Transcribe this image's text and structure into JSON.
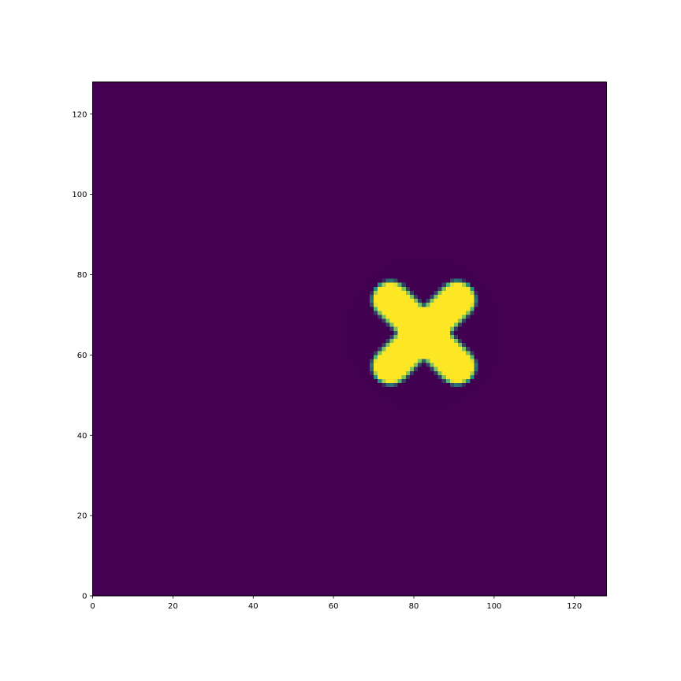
{
  "chart_data": {
    "type": "heatmap",
    "title": "",
    "xlabel": "",
    "ylabel": "",
    "xlim": [
      0,
      128
    ],
    "ylim": [
      0,
      128
    ],
    "origin": "lower",
    "grid": false,
    "legend": "none",
    "colormap": "viridis",
    "x_ticks": [
      0,
      20,
      40,
      60,
      80,
      100,
      120
    ],
    "x_tick_labels": [
      "0",
      "20",
      "40",
      "60",
      "80",
      "100",
      "120"
    ],
    "y_ticks": [
      0,
      20,
      40,
      60,
      80,
      100,
      120
    ],
    "y_tick_labels": [
      "0",
      "20",
      "40",
      "60",
      "80",
      "100",
      "120"
    ],
    "background_value": 0,
    "background_color": "#440154",
    "shape": {
      "description": "four-lobed cross",
      "center": [
        82.5,
        65.5
      ],
      "rotation_deg": 45,
      "lobe_length": 16,
      "lobe_half_width": 4.3,
      "core_radius": 6.5,
      "edge_transition": 0.9,
      "value": 1,
      "color": "#fde725",
      "edge_color": "#21a585"
    },
    "faint_halo": {
      "center": [
        82.5,
        65.5
      ],
      "radius": 19,
      "value": 0.03,
      "color": "#420150"
    }
  }
}
